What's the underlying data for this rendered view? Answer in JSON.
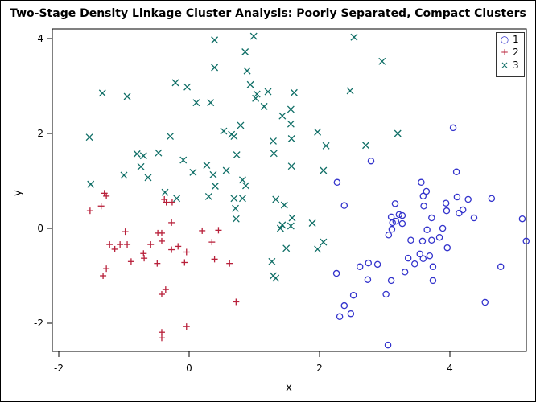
{
  "chart_data": {
    "type": "scatter",
    "title": "Two-Stage Density Linkage Cluster Analysis: Poorly Separated, Compact Clusters",
    "xlabel": "x",
    "ylabel": "y",
    "xlim": [
      -2.1,
      5.2
    ],
    "ylim": [
      -2.6,
      4.1
    ],
    "xticks": [
      -2,
      0,
      2,
      4
    ],
    "yticks": [
      -2,
      0,
      2,
      4
    ],
    "grid": false,
    "legend_position": "top-right inside",
    "series": [
      {
        "name": "1",
        "marker": "circle",
        "color": "#3333CC",
        "points": [
          [
            2.27,
            0.97
          ],
          [
            2.38,
            0.48
          ],
          [
            2.79,
            1.42
          ],
          [
            3.16,
            0.52
          ],
          [
            3.22,
            0.29
          ],
          [
            3.56,
            0.97
          ],
          [
            3.72,
            0.22
          ],
          [
            3.74,
            -0.81
          ],
          [
            3.74,
            -1.1
          ],
          [
            4.05,
            2.12
          ],
          [
            4.1,
            1.19
          ],
          [
            4.28,
            0.61
          ],
          [
            4.78,
            -0.81
          ],
          [
            5.11,
            0.2
          ],
          [
            5.17,
            -0.27
          ],
          [
            4.54,
            -1.56
          ],
          [
            4.64,
            0.63
          ],
          [
            3.96,
            -0.41
          ],
          [
            3.58,
            -0.27
          ],
          [
            3.11,
            -0.02
          ],
          [
            3.1,
            0.24
          ],
          [
            3.27,
            0.27
          ],
          [
            4.11,
            0.66
          ],
          [
            3.06,
            -0.14
          ],
          [
            4.2,
            0.39
          ],
          [
            3.94,
            0.53
          ],
          [
            3.95,
            0.37
          ],
          [
            4.14,
            0.32
          ],
          [
            3.84,
            -0.19
          ],
          [
            3.89,
            0.0
          ],
          [
            3.69,
            -0.58
          ],
          [
            3.59,
            -0.64
          ],
          [
            3.54,
            -0.54
          ],
          [
            3.36,
            -0.63
          ],
          [
            3.31,
            -0.92
          ],
          [
            3.46,
            -0.75
          ],
          [
            2.89,
            -0.76
          ],
          [
            3.1,
            -1.1
          ],
          [
            2.62,
            -0.81
          ],
          [
            2.74,
            -1.08
          ],
          [
            2.26,
            -0.95
          ],
          [
            2.52,
            -1.41
          ],
          [
            2.38,
            -1.63
          ],
          [
            2.31,
            -1.86
          ],
          [
            2.48,
            -1.8
          ],
          [
            3.05,
            -2.46
          ],
          [
            3.02,
            -1.39
          ],
          [
            2.75,
            -0.73
          ],
          [
            3.4,
            -0.25
          ],
          [
            3.65,
            -0.03
          ],
          [
            3.17,
            0.15
          ],
          [
            3.6,
            0.47
          ],
          [
            3.64,
            0.78
          ],
          [
            3.59,
            0.68
          ],
          [
            3.12,
            0.12
          ],
          [
            3.27,
            0.1
          ],
          [
            3.72,
            -0.25
          ],
          [
            4.37,
            0.22
          ]
        ]
      },
      {
        "name": "2",
        "marker": "plus",
        "color": "#B8203A",
        "points": [
          [
            -1.3,
            0.74
          ],
          [
            -1.27,
            0.68
          ],
          [
            -1.35,
            0.47
          ],
          [
            -1.52,
            0.37
          ],
          [
            -0.98,
            -0.07
          ],
          [
            -0.42,
            -0.1
          ],
          [
            -0.7,
            -0.53
          ],
          [
            -0.42,
            -0.27
          ],
          [
            -0.48,
            -0.1
          ],
          [
            -0.27,
            -0.45
          ],
          [
            -0.26,
            0.55
          ],
          [
            -0.38,
            0.61
          ],
          [
            -0.35,
            0.55
          ],
          [
            -0.59,
            -0.34
          ],
          [
            -1.22,
            -0.34
          ],
          [
            -1.06,
            -0.34
          ],
          [
            -0.95,
            -0.34
          ],
          [
            -1.14,
            -0.44
          ],
          [
            -0.89,
            -0.7
          ],
          [
            -0.69,
            -0.63
          ],
          [
            -0.49,
            -0.74
          ],
          [
            -0.07,
            -0.72
          ],
          [
            -0.17,
            -0.38
          ],
          [
            -0.04,
            -0.5
          ],
          [
            -1.27,
            -0.85
          ],
          [
            -1.32,
            -1.0
          ],
          [
            -0.36,
            -1.29
          ],
          [
            -0.42,
            -1.39
          ],
          [
            -0.04,
            -2.07
          ],
          [
            -0.42,
            -2.19
          ],
          [
            -0.42,
            -2.31
          ],
          [
            0.35,
            -0.29
          ],
          [
            0.39,
            -0.65
          ],
          [
            0.62,
            -0.74
          ],
          [
            0.72,
            -1.55
          ],
          [
            0.45,
            -0.04
          ],
          [
            0.2,
            -0.05
          ],
          [
            -0.27,
            0.12
          ]
        ]
      },
      {
        "name": "3",
        "marker": "x",
        "color": "#0F6E66",
        "points": [
          [
            -1.53,
            1.92
          ],
          [
            -1.33,
            2.85
          ],
          [
            -0.95,
            2.78
          ],
          [
            -0.21,
            3.07
          ],
          [
            -0.03,
            2.98
          ],
          [
            0.11,
            2.65
          ],
          [
            0.33,
            2.65
          ],
          [
            0.39,
            3.97
          ],
          [
            0.39,
            3.39
          ],
          [
            0.86,
            3.72
          ],
          [
            0.99,
            4.05
          ],
          [
            0.89,
            3.32
          ],
          [
            0.94,
            3.03
          ],
          [
            1.04,
            2.83
          ],
          [
            1.02,
            2.74
          ],
          [
            1.15,
            2.57
          ],
          [
            1.21,
            2.88
          ],
          [
            1.61,
            2.86
          ],
          [
            1.56,
            2.51
          ],
          [
            1.43,
            2.37
          ],
          [
            1.56,
            2.2
          ],
          [
            1.29,
            1.84
          ],
          [
            1.57,
            1.89
          ],
          [
            1.97,
            2.03
          ],
          [
            2.1,
            1.74
          ],
          [
            1.3,
            1.58
          ],
          [
            1.57,
            1.31
          ],
          [
            2.06,
            1.22
          ],
          [
            2.47,
            2.9
          ],
          [
            2.53,
            4.03
          ],
          [
            2.96,
            3.52
          ],
          [
            3.2,
            2.0
          ],
          [
            2.71,
            1.75
          ],
          [
            -1.51,
            0.93
          ],
          [
            -1.0,
            1.12
          ],
          [
            -0.8,
            1.57
          ],
          [
            -0.7,
            1.53
          ],
          [
            -0.74,
            1.3
          ],
          [
            -0.63,
            1.07
          ],
          [
            -0.47,
            1.59
          ],
          [
            -0.29,
            1.94
          ],
          [
            -0.09,
            1.44
          ],
          [
            0.06,
            1.18
          ],
          [
            0.27,
            1.33
          ],
          [
            0.37,
            1.13
          ],
          [
            0.4,
            0.89
          ],
          [
            0.53,
            2.05
          ],
          [
            0.65,
            1.98
          ],
          [
            0.69,
            1.94
          ],
          [
            0.57,
            1.22
          ],
          [
            0.73,
            1.55
          ],
          [
            0.79,
            2.17
          ],
          [
            0.82,
            1.02
          ],
          [
            0.87,
            0.9
          ],
          [
            0.3,
            0.67
          ],
          [
            -0.37,
            0.76
          ],
          [
            -0.19,
            0.63
          ],
          [
            0.69,
            0.63
          ],
          [
            0.71,
            0.42
          ],
          [
            0.72,
            0.2
          ],
          [
            0.82,
            0.63
          ],
          [
            1.33,
            0.61
          ],
          [
            1.46,
            0.49
          ],
          [
            1.4,
            0.0
          ],
          [
            1.43,
            0.07
          ],
          [
            1.49,
            -0.42
          ],
          [
            1.58,
            0.22
          ],
          [
            1.56,
            0.05
          ],
          [
            1.89,
            0.11
          ],
          [
            1.97,
            -0.44
          ],
          [
            2.06,
            -0.29
          ],
          [
            1.27,
            -0.7
          ],
          [
            1.29,
            -1.0
          ],
          [
            1.33,
            -1.05
          ]
        ]
      }
    ]
  },
  "legend": {
    "items": [
      {
        "label": "1",
        "symbol": "○",
        "color": "#3333CC"
      },
      {
        "label": "2",
        "symbol": "+",
        "color": "#B8203A"
      },
      {
        "label": "3",
        "symbol": "×",
        "color": "#0F6E66"
      }
    ]
  },
  "axes": {
    "x_label": "x",
    "y_label": "y",
    "x_tick_labels": [
      "-2",
      "0",
      "2",
      "4"
    ],
    "y_tick_labels": [
      "4",
      "2",
      "0",
      "-2"
    ]
  }
}
